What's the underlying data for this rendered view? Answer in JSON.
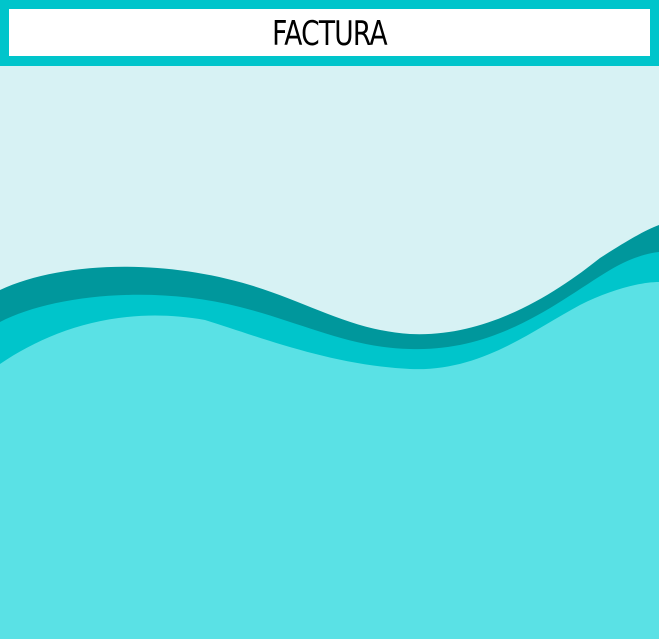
{
  "header": {
    "title": "FACTURA"
  },
  "colors": {
    "background": "#d7f2f4",
    "header_band": "#00c5cb",
    "title_box": "#ffffff",
    "title_text": "#000000",
    "wave_dark": "#00979c",
    "wave_mid": "#00c5cb",
    "wave_light": "#5ae1e5"
  }
}
